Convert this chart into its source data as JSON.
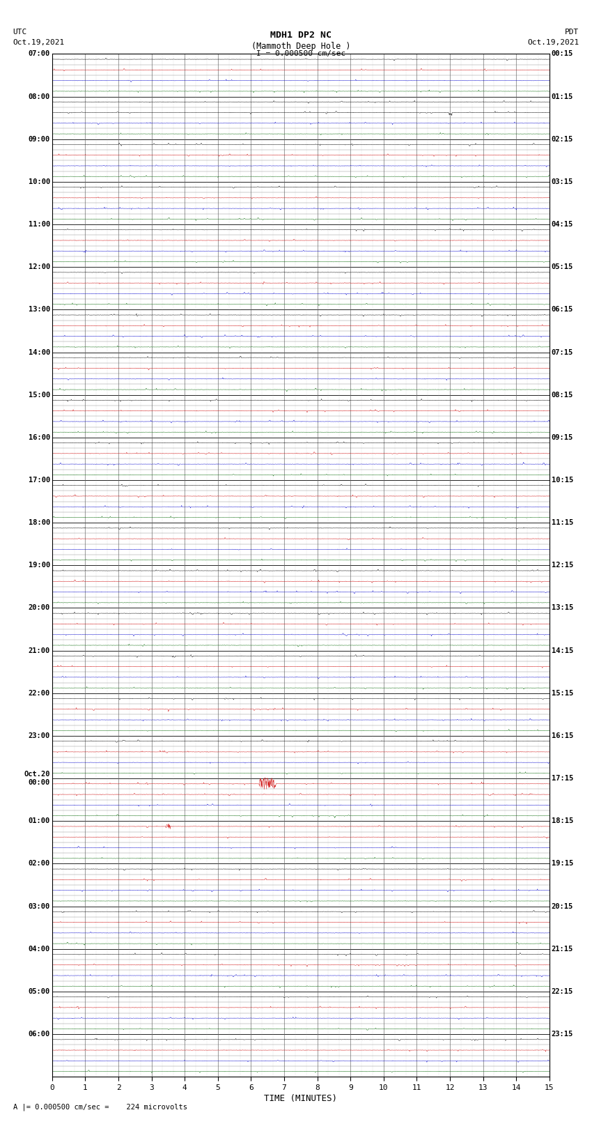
{
  "title_line1": "MDH1 DP2 NC",
  "title_line2": "(Mammoth Deep Hole )",
  "title_line3": "I = 0.000500 cm/sec",
  "left_header_line1": "UTC",
  "left_header_line2": "Oct.19,2021",
  "right_header_line1": "PDT",
  "right_header_line2": "Oct.19,2021",
  "footer_text": "A |= 0.000500 cm/sec =    224 microvolts",
  "xlabel": "TIME (MINUTES)",
  "utc_labels": [
    "07:00",
    "",
    "",
    "",
    "08:00",
    "",
    "",
    "",
    "09:00",
    "",
    "",
    "",
    "10:00",
    "",
    "",
    "",
    "11:00",
    "",
    "",
    "",
    "12:00",
    "",
    "",
    "",
    "13:00",
    "",
    "",
    "",
    "14:00",
    "",
    "",
    "",
    "15:00",
    "",
    "",
    "",
    "16:00",
    "",
    "",
    "",
    "17:00",
    "",
    "",
    "",
    "18:00",
    "",
    "",
    "",
    "19:00",
    "",
    "",
    "",
    "20:00",
    "",
    "",
    "",
    "21:00",
    "",
    "",
    "",
    "22:00",
    "",
    "",
    "",
    "23:00",
    "",
    "",
    "",
    "Oct.20\n00:00",
    "",
    "",
    "",
    "01:00",
    "",
    "",
    "",
    "02:00",
    "",
    "",
    "",
    "03:00",
    "",
    "",
    "",
    "04:00",
    "",
    "",
    "",
    "05:00",
    "",
    "",
    "",
    "06:00",
    "",
    "",
    ""
  ],
  "pdt_labels": [
    "00:15",
    "",
    "",
    "",
    "01:15",
    "",
    "",
    "",
    "02:15",
    "",
    "",
    "",
    "03:15",
    "",
    "",
    "",
    "04:15",
    "",
    "",
    "",
    "05:15",
    "",
    "",
    "",
    "06:15",
    "",
    "",
    "",
    "07:15",
    "",
    "",
    "",
    "08:15",
    "",
    "",
    "",
    "09:15",
    "",
    "",
    "",
    "10:15",
    "",
    "",
    "",
    "11:15",
    "",
    "",
    "",
    "12:15",
    "",
    "",
    "",
    "13:15",
    "",
    "",
    "",
    "14:15",
    "",
    "",
    "",
    "15:15",
    "",
    "",
    "",
    "16:15",
    "",
    "",
    "",
    "17:15",
    "",
    "",
    "",
    "18:15",
    "",
    "",
    "",
    "19:15",
    "",
    "",
    "",
    "20:15",
    "",
    "",
    "",
    "21:15",
    "",
    "",
    "",
    "22:15",
    "",
    "",
    "",
    "23:15",
    "",
    "",
    ""
  ],
  "num_traces": 96,
  "traces_per_hour": 4,
  "x_min": 0,
  "x_max": 15,
  "background_color": "#ffffff",
  "colors_cycle": [
    "#000000",
    "#cc0000",
    "#0000cc",
    "#006600"
  ],
  "grid_minor_color": "#aaaaaa",
  "grid_major_color": "#000000"
}
